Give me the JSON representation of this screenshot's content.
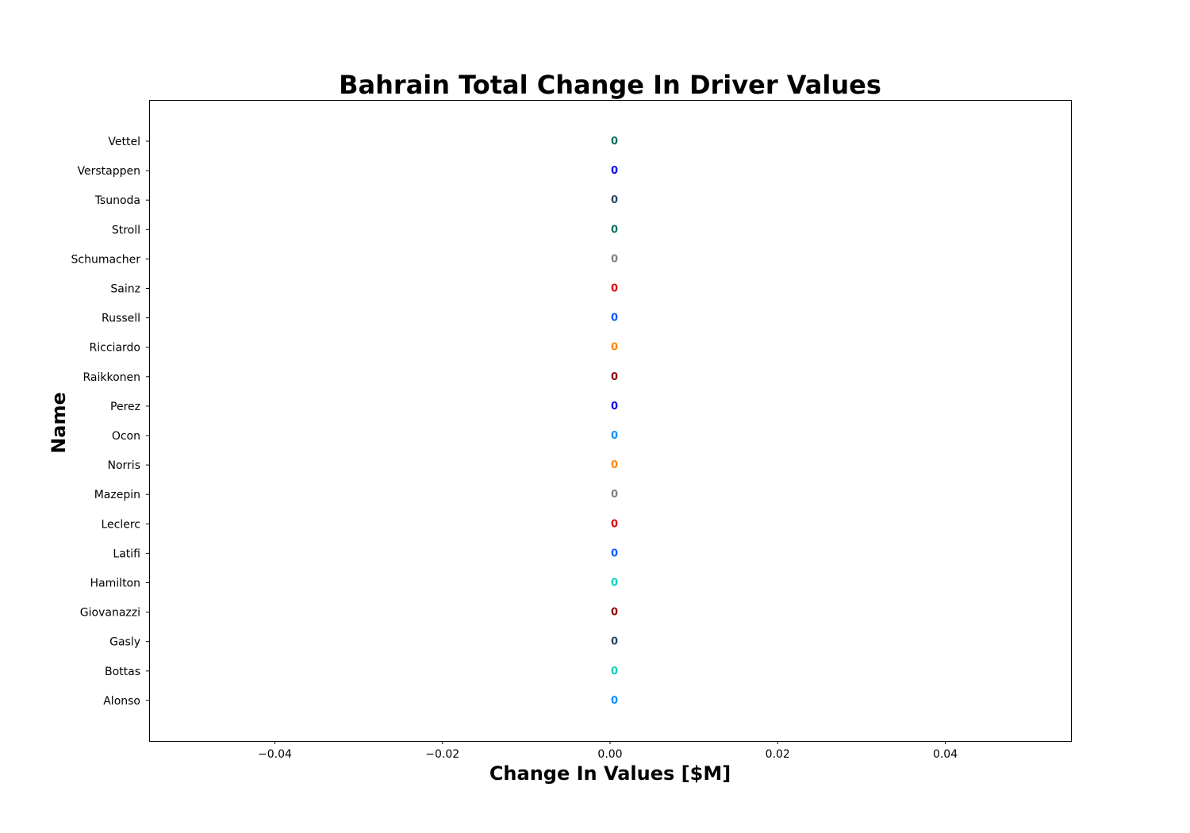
{
  "chart_data": {
    "type": "bar",
    "orientation": "horizontal",
    "title": "Bahrain Total Change In Driver Values",
    "xlabel": "Change In Values [$M]",
    "ylabel": "Name",
    "xlim": [
      -0.055,
      0.055
    ],
    "x_ticks": [
      "−0.04",
      "−0.02",
      "0.00",
      "0.02",
      "0.04"
    ],
    "x_tick_values": [
      -0.04,
      -0.02,
      0.0,
      0.02,
      0.04
    ],
    "grid": false,
    "categories": [
      "Vettel",
      "Verstappen",
      "Tsunoda",
      "Stroll",
      "Schumacher",
      "Sainz",
      "Russell",
      "Ricciardo",
      "Raikkonen",
      "Perez",
      "Ocon",
      "Norris",
      "Mazepin",
      "Leclerc",
      "Latifi",
      "Hamilton",
      "Giovanazzi",
      "Gasly",
      "Bottas",
      "Alonso"
    ],
    "values": [
      0,
      0,
      0,
      0,
      0,
      0,
      0,
      0,
      0,
      0,
      0,
      0,
      0,
      0,
      0,
      0,
      0,
      0,
      0,
      0
    ],
    "data_labels": [
      "0",
      "0",
      "0",
      "0",
      "0",
      "0",
      "0",
      "0",
      "0",
      "0",
      "0",
      "0",
      "0",
      "0",
      "0",
      "0",
      "0",
      "0",
      "0",
      "0"
    ],
    "bar_edge_colors": [
      "#7ec850",
      "#ffd700",
      "#ffffff",
      "#7ec850",
      "#000000",
      "#ffd700",
      "#ffffff",
      "#0000ff",
      "#ffffff",
      "#ffd700",
      "#000000",
      "#0000ff",
      "#000000",
      "#ffd700",
      "#ffffff",
      "#000000",
      "#ffffff",
      "#ffffff",
      "#000000",
      "#000000"
    ],
    "label_colors": [
      "#006f62",
      "#0600ef",
      "#2b4562",
      "#006f62",
      "#808080",
      "#dc0000",
      "#005aff",
      "#ff8700",
      "#900000",
      "#0600ef",
      "#0090ff",
      "#ff8700",
      "#808080",
      "#dc0000",
      "#005aff",
      "#00d2be",
      "#900000",
      "#2b4562",
      "#00d2be",
      "#0090ff"
    ]
  }
}
